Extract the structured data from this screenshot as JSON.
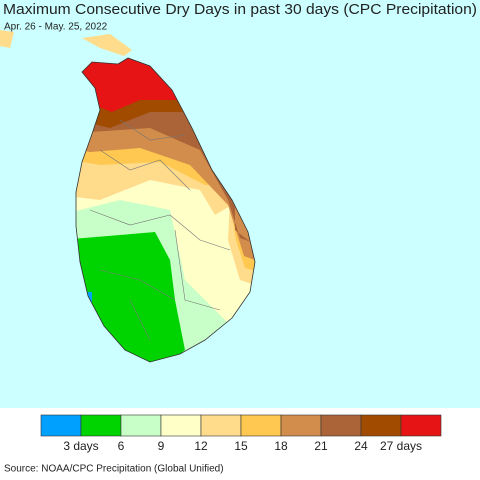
{
  "header": {
    "title": "Maximum Consecutive Dry Days in past 30 days (CPC Precipitation)",
    "subtitle": "Apr. 26 - May. 25, 2022"
  },
  "legend": {
    "colors": [
      "#00a0ff",
      "#00d400",
      "#c8ffc8",
      "#ffffc8",
      "#ffdc8c",
      "#ffc850",
      "#d28c4b",
      "#aa6437",
      "#a04b00",
      "#e61414"
    ],
    "labels": [
      "3 days",
      "6",
      "9",
      "12",
      "15",
      "18",
      "21",
      "24",
      "27 days"
    ]
  },
  "footer": {
    "source": "Source: NOAA/CPC Precipitation (Global Unified)"
  }
}
